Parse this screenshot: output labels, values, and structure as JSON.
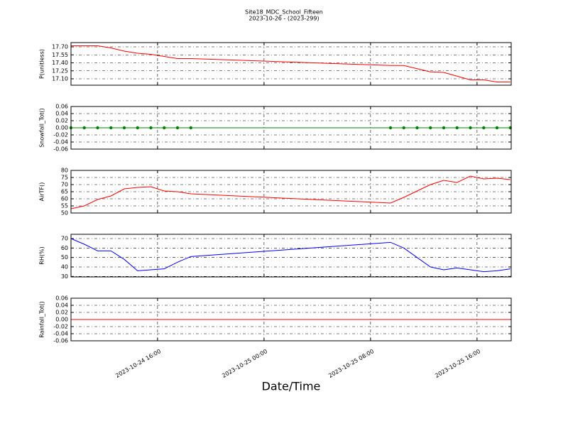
{
  "chart_data": [
    {
      "type": "line",
      "title": "Site18_MDC_School_Fifteen",
      "subtitle": "2023-10-26 - (2023-299)",
      "y_label": "P(unitless)",
      "color": "#ff0000",
      "grid": true,
      "x": [
        "2023-10-24 09:30",
        "2023-10-24 10:30",
        "2023-10-24 11:30",
        "2023-10-24 12:30",
        "2023-10-24 13:30",
        "2023-10-24 14:30",
        "2023-10-24 15:30",
        "2023-10-24 16:30",
        "2023-10-24 17:30",
        "2023-10-24 18:30",
        "2023-10-25 09:30",
        "2023-10-25 10:30",
        "2023-10-25 11:30",
        "2023-10-25 12:30",
        "2023-10-25 13:30",
        "2023-10-25 14:30",
        "2023-10-25 15:30",
        "2023-10-25 16:30",
        "2023-10-25 17:30",
        "2023-10-25 18:30"
      ],
      "values": [
        17.72,
        17.72,
        17.72,
        17.68,
        17.62,
        17.58,
        17.56,
        17.52,
        17.48,
        17.48,
        17.35,
        17.35,
        17.29,
        17.23,
        17.22,
        17.15,
        17.08,
        17.08,
        17.04,
        17.04
      ],
      "xlim": [
        "2023-10-24 09:30",
        "2023-10-25 18:34"
      ],
      "xticks": [
        "2023-10-24 16:00",
        "2023-10-25 00:00",
        "2023-10-25 08:00",
        "2023-10-25 16:00"
      ],
      "ylim": [
        16.98,
        17.78
      ],
      "yticks": [
        {
          "value": 17.1,
          "label": "17.10"
        },
        {
          "value": 17.25,
          "label": "17.25"
        },
        {
          "value": 17.4,
          "label": "17.40"
        },
        {
          "value": 17.55,
          "label": "17.55"
        },
        {
          "value": 17.7,
          "label": "17.70"
        }
      ]
    },
    {
      "type": "line",
      "y_label": "Snowfall_Tot()",
      "color": "#008000",
      "marker": "o",
      "grid": true,
      "x": [
        "2023-10-24 09:30",
        "2023-10-24 10:30",
        "2023-10-24 11:30",
        "2023-10-24 12:30",
        "2023-10-24 13:30",
        "2023-10-24 14:30",
        "2023-10-24 15:30",
        "2023-10-24 16:30",
        "2023-10-24 17:30",
        "2023-10-24 18:30",
        "2023-10-25 09:30",
        "2023-10-25 10:30",
        "2023-10-25 11:30",
        "2023-10-25 12:30",
        "2023-10-25 13:30",
        "2023-10-25 14:30",
        "2023-10-25 15:30",
        "2023-10-25 16:30",
        "2023-10-25 17:30",
        "2023-10-25 18:30"
      ],
      "values": [
        0,
        0,
        0,
        0,
        0,
        0,
        0,
        0,
        0,
        0,
        0,
        0,
        0,
        0,
        0,
        0,
        0,
        0,
        0,
        0
      ],
      "xlim": [
        "2023-10-24 09:30",
        "2023-10-25 18:34"
      ],
      "xticks": [
        "2023-10-24 16:00",
        "2023-10-25 00:00",
        "2023-10-25 08:00",
        "2023-10-25 16:00"
      ],
      "ylim": [
        -0.06,
        0.06
      ],
      "yticks": [
        -0.06,
        -0.04,
        -0.02,
        {
          "value": 0,
          "label": "0.00"
        },
        0.02,
        0.04,
        0.06
      ]
    },
    {
      "type": "line",
      "y_label": "AirTF()",
      "color": "#ff0000",
      "grid": true,
      "x": [
        "2023-10-24 09:30",
        "2023-10-24 10:30",
        "2023-10-24 11:30",
        "2023-10-24 12:30",
        "2023-10-24 13:30",
        "2023-10-24 14:30",
        "2023-10-24 15:30",
        "2023-10-24 16:30",
        "2023-10-24 17:30",
        "2023-10-24 18:30",
        "2023-10-25 09:30",
        "2023-10-25 10:30",
        "2023-10-25 11:30",
        "2023-10-25 12:30",
        "2023-10-25 13:30",
        "2023-10-25 14:30",
        "2023-10-25 15:30",
        "2023-10-25 16:30",
        "2023-10-25 17:30",
        "2023-10-25 18:30"
      ],
      "values": [
        53,
        55,
        59.5,
        62,
        67,
        68,
        68.5,
        65.5,
        65,
        63.5,
        57,
        61,
        65.5,
        70,
        73,
        71.5,
        76,
        74,
        74.5,
        73.5
      ],
      "xlim": [
        "2023-10-24 09:30",
        "2023-10-25 18:34"
      ],
      "xticks": [
        "2023-10-24 16:00",
        "2023-10-25 00:00",
        "2023-10-25 08:00",
        "2023-10-25 16:00"
      ],
      "ylim": [
        50,
        80
      ],
      "yticks": [
        50,
        55,
        60,
        65,
        70,
        75,
        80
      ]
    },
    {
      "type": "line",
      "y_label": "RH(%)",
      "color": "#0000ff",
      "grid": true,
      "x": [
        "2023-10-24 09:30",
        "2023-10-24 10:30",
        "2023-10-24 11:30",
        "2023-10-24 12:30",
        "2023-10-24 13:30",
        "2023-10-24 14:30",
        "2023-10-24 15:30",
        "2023-10-24 16:30",
        "2023-10-24 17:30",
        "2023-10-24 18:30",
        "2023-10-25 09:30",
        "2023-10-25 10:30",
        "2023-10-25 11:30",
        "2023-10-25 12:30",
        "2023-10-25 13:30",
        "2023-10-25 14:30",
        "2023-10-25 15:30",
        "2023-10-25 16:30",
        "2023-10-25 17:30",
        "2023-10-25 18:30"
      ],
      "values": [
        70,
        64,
        57,
        57,
        48,
        36,
        37,
        38,
        45,
        51,
        66,
        60,
        50,
        40,
        37,
        39,
        37,
        35,
        36,
        38
      ],
      "xlim": [
        "2023-10-24 09:30",
        "2023-10-25 18:34"
      ],
      "xticks": [
        "2023-10-24 16:00",
        "2023-10-25 00:00",
        "2023-10-25 08:00",
        "2023-10-25 16:00"
      ],
      "ylim": [
        29.5,
        74.5
      ],
      "yticks": [
        30,
        40,
        50,
        60,
        70
      ]
    },
    {
      "type": "line",
      "y_label": "Rainfall_Tot()",
      "x_label": "Date/Time",
      "color": "#ff0000",
      "grid": true,
      "x": [
        "2023-10-24 09:30",
        "2023-10-24 10:30",
        "2023-10-24 11:30",
        "2023-10-24 12:30",
        "2023-10-24 13:30",
        "2023-10-24 14:30",
        "2023-10-24 15:30",
        "2023-10-24 16:30",
        "2023-10-24 17:30",
        "2023-10-24 18:30",
        "2023-10-25 09:30",
        "2023-10-25 10:30",
        "2023-10-25 11:30",
        "2023-10-25 12:30",
        "2023-10-25 13:30",
        "2023-10-25 14:30",
        "2023-10-25 15:30",
        "2023-10-25 16:30",
        "2023-10-25 17:30",
        "2023-10-25 18:30"
      ],
      "values": [
        0,
        0,
        0,
        0,
        0,
        0,
        0,
        0,
        0,
        0,
        0,
        0,
        0,
        0,
        0,
        0,
        0,
        0,
        0,
        0
      ],
      "xlim": [
        "2023-10-24 09:30",
        "2023-10-25 18:34"
      ],
      "xticks": [
        "2023-10-24 16:00",
        "2023-10-25 00:00",
        "2023-10-25 08:00",
        "2023-10-25 16:00"
      ],
      "ylim": [
        -0.06,
        0.06
      ],
      "yticks": [
        -0.06,
        -0.04,
        -0.02,
        {
          "value": 0,
          "label": "0.00"
        },
        0.02,
        0.04,
        0.06
      ]
    }
  ]
}
